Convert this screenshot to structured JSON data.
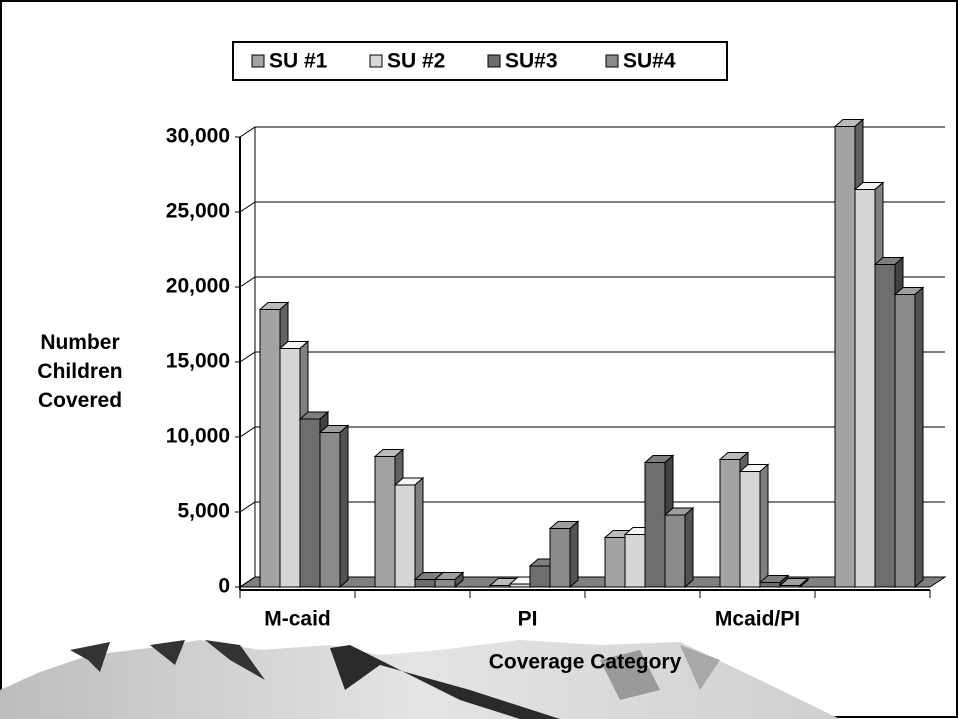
{
  "chart_data": {
    "type": "bar3d",
    "x_label": "Coverage Category",
    "y_label": "Number Children Covered",
    "categories": [
      "M-caid",
      null,
      "PI",
      null,
      "Mcaid/PI",
      null
    ],
    "series": [
      {
        "name": "SU #1",
        "color": "#a3a3a3",
        "values": [
          18500,
          8700,
          100,
          3300,
          8500,
          30700
        ]
      },
      {
        "name": "SU #2",
        "color": "#d6d6d6",
        "values": [
          15900,
          6800,
          200,
          3500,
          7700,
          26500
        ]
      },
      {
        "name": "SU#3",
        "color": "#6e6e6e",
        "values": [
          11200,
          500,
          1400,
          8300,
          300,
          21500
        ]
      },
      {
        "name": "SU#4",
        "color": "#8a8a8a",
        "values": [
          10300,
          500,
          3900,
          4800,
          100,
          19500
        ]
      }
    ],
    "ylim": [
      0,
      30000
    ],
    "yticks": [
      0,
      {
        "value": 5000,
        "label": "5,000"
      },
      {
        "value": 10000,
        "label": "10,000"
      },
      {
        "value": 15000,
        "label": "15,000"
      },
      {
        "value": 20000,
        "label": "20,000"
      },
      {
        "value": 25000,
        "label": "25,000"
      },
      {
        "value": 30000,
        "label": "30,000"
      }
    ],
    "grid": true,
    "legend": "top"
  }
}
